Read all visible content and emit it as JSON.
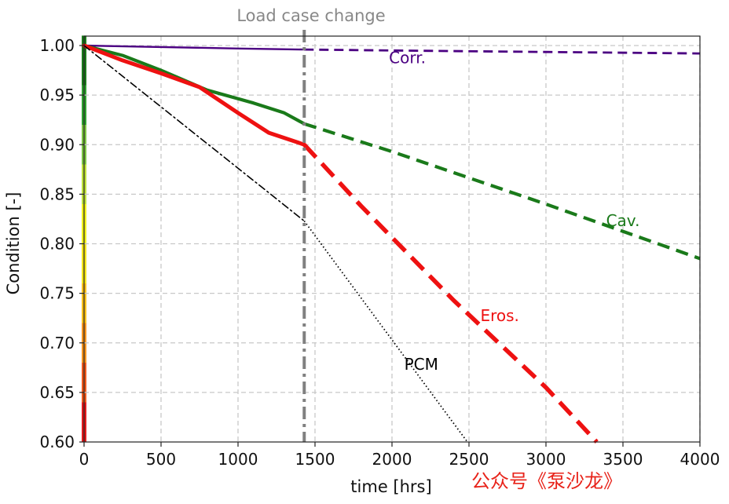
{
  "chart_data": {
    "type": "line",
    "title": "",
    "xlabel": "time [hrs]",
    "ylabel": "Condition [-]",
    "xlim": [
      0,
      4000
    ],
    "ylim": [
      0.6,
      1.0
    ],
    "xticks": [
      0,
      500,
      1000,
      1500,
      2000,
      2500,
      3000,
      3500,
      4000
    ],
    "yticks": [
      0.6,
      0.65,
      0.7,
      0.75,
      0.8,
      0.85,
      0.9,
      0.95,
      1.0
    ],
    "xtick_labels": [
      "0",
      "500",
      "1000",
      "1500",
      "2000",
      "2500",
      "3000",
      "3500",
      "4000"
    ],
    "ytick_labels": [
      "0.60",
      "0.65",
      "0.70",
      "0.75",
      "0.80",
      "0.85",
      "0.90",
      "0.95",
      "1.00"
    ],
    "grid": true,
    "load_case_change": {
      "x": 1430,
      "label": "Load case change",
      "color": "#808080"
    },
    "series": [
      {
        "name": "Corr.",
        "color": "#4b0082",
        "observed": [
          [
            0,
            1.0
          ],
          [
            500,
            0.9985
          ],
          [
            1000,
            0.997
          ],
          [
            1430,
            0.996
          ]
        ],
        "forecast": [
          [
            1430,
            0.996
          ],
          [
            2000,
            0.995
          ],
          [
            3000,
            0.9935
          ],
          [
            4000,
            0.992
          ]
        ],
        "label_at": [
          2100,
          0.982
        ]
      },
      {
        "name": "Cav.",
        "color": "#1a7a1a",
        "observed": [
          [
            0,
            1.0
          ],
          [
            250,
            0.99
          ],
          [
            500,
            0.975
          ],
          [
            800,
            0.955
          ],
          [
            1100,
            0.942
          ],
          [
            1300,
            0.932
          ],
          [
            1430,
            0.921
          ]
        ],
        "forecast": [
          [
            1430,
            0.921
          ],
          [
            2000,
            0.893
          ],
          [
            3000,
            0.84
          ],
          [
            4000,
            0.785
          ]
        ],
        "label_at": [
          3500,
          0.818
        ]
      },
      {
        "name": "Eros.",
        "color": "#ee1111",
        "observed": [
          [
            0,
            1.0
          ],
          [
            250,
            0.985
          ],
          [
            500,
            0.972
          ],
          [
            750,
            0.958
          ],
          [
            1000,
            0.932
          ],
          [
            1200,
            0.912
          ],
          [
            1430,
            0.9
          ]
        ],
        "forecast": [
          [
            1430,
            0.9
          ],
          [
            1800,
            0.838
          ],
          [
            2400,
            0.743
          ],
          [
            3000,
            0.655
          ],
          [
            3330,
            0.6
          ]
        ],
        "label_at": [
          2700,
          0.722
        ]
      },
      {
        "name": "PCM",
        "color": "#000000",
        "observed": [
          [
            0,
            1.0
          ],
          [
            1430,
            0.823
          ]
        ],
        "forecast": [
          [
            1430,
            0.823
          ],
          [
            2490,
            0.6
          ]
        ],
        "label_at": [
          2190,
          0.673
        ]
      }
    ],
    "condition_colorbar": [
      {
        "from": 0.6,
        "to": 0.64,
        "color": "#e31a1c"
      },
      {
        "from": 0.64,
        "to": 0.68,
        "color": "#f0591c"
      },
      {
        "from": 0.68,
        "to": 0.72,
        "color": "#f7941d"
      },
      {
        "from": 0.72,
        "to": 0.76,
        "color": "#f9c11a"
      },
      {
        "from": 0.76,
        "to": 0.8,
        "color": "#f6e61a"
      },
      {
        "from": 0.8,
        "to": 0.84,
        "color": "#f2f21c"
      },
      {
        "from": 0.84,
        "to": 0.88,
        "color": "#bfe23a"
      },
      {
        "from": 0.88,
        "to": 0.92,
        "color": "#7cc542"
      },
      {
        "from": 0.92,
        "to": 0.96,
        "color": "#2ea12e"
      },
      {
        "from": 0.96,
        "to": 1.01,
        "color": "#1a7a1a"
      }
    ]
  },
  "watermark": "公众号《泵沙龙》"
}
